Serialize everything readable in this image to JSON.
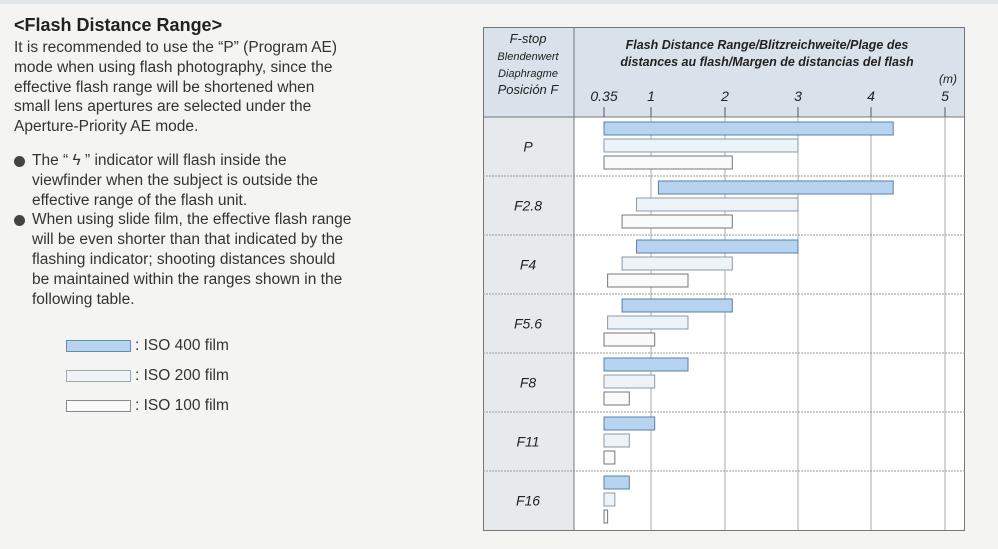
{
  "section": {
    "heading": "<Flash Distance Range>",
    "intro": [
      "It is recommended to use the “P” (Program AE)",
      "mode when using flash photography, since the",
      "effective flash range will be shortened when",
      "small lens apertures are selected under the",
      "Aperture-Priority AE mode."
    ],
    "bullets": [
      {
        "lines": [
          "The “ ϟ ” indicator will flash inside the",
          "viewfinder when the subject is outside the",
          "effective range of the flash unit."
        ]
      },
      {
        "lines": [
          "When using slide film, the effective flash range",
          "will be even shorter than that indicated by the",
          "flashing indicator; shooting distances should",
          "be maintained within the ranges shown in the",
          "following table."
        ]
      }
    ],
    "legend": [
      {
        "label": ": ISO 400 film",
        "color": "#b6d4f0"
      },
      {
        "label": ": ISO 200 film",
        "color": "#eef3f8"
      },
      {
        "label": ": ISO 100 film",
        "color": "#fafafa"
      }
    ]
  },
  "table": {
    "col1_header": [
      "F-stop",
      "Blendenwert",
      "Diaphragme",
      "Posición F"
    ],
    "col2_header": [
      "Flash Distance Range/Blitzreichweite/Plage des",
      "distances au flash/Margen de distancias del flash"
    ],
    "unit": "(m)",
    "ticks": [
      "0.35",
      "1",
      "2",
      "3",
      "4",
      "5"
    ],
    "rows": [
      "P",
      "F2.8",
      "F4",
      "F5.6",
      "F8",
      "F11",
      "F16"
    ],
    "colors": {
      "iso400": "#b6d4f0",
      "iso200": "#eef3f8",
      "iso100": "#fafafa",
      "header": "#d9e2ea",
      "band": "#e7eaed"
    }
  },
  "chart_data": {
    "type": "range-bar",
    "title": "Flash Distance Range/Blitzreichweite/Plage des distances au flash/Margen de distancias del flash",
    "xlabel": "(m)",
    "ylabel": "F-stop",
    "x_ticks": [
      0.35,
      1,
      2,
      3,
      4,
      5
    ],
    "xlim": [
      0.35,
      5
    ],
    "categories": [
      "P",
      "F2.8",
      "F4",
      "F5.6",
      "F8",
      "F11",
      "F16"
    ],
    "series": [
      {
        "name": "ISO 400 film",
        "ranges": [
          [
            0.35,
            4.3
          ],
          [
            1.1,
            4.3
          ],
          [
            0.8,
            3.0
          ],
          [
            0.6,
            2.1
          ],
          [
            0.35,
            1.5
          ],
          [
            0.35,
            1.05
          ],
          [
            0.35,
            0.7
          ]
        ]
      },
      {
        "name": "ISO 200 film",
        "ranges": [
          [
            0.35,
            3.0
          ],
          [
            0.8,
            3.0
          ],
          [
            0.6,
            2.1
          ],
          [
            0.4,
            1.5
          ],
          [
            0.35,
            1.05
          ],
          [
            0.35,
            0.7
          ],
          [
            0.35,
            0.5
          ]
        ]
      },
      {
        "name": "ISO 100 film",
        "ranges": [
          [
            0.35,
            2.1
          ],
          [
            0.6,
            2.1
          ],
          [
            0.4,
            1.5
          ],
          [
            0.35,
            1.05
          ],
          [
            0.35,
            0.7
          ],
          [
            0.35,
            0.5
          ],
          [
            0.35,
            0.4
          ]
        ]
      }
    ]
  }
}
